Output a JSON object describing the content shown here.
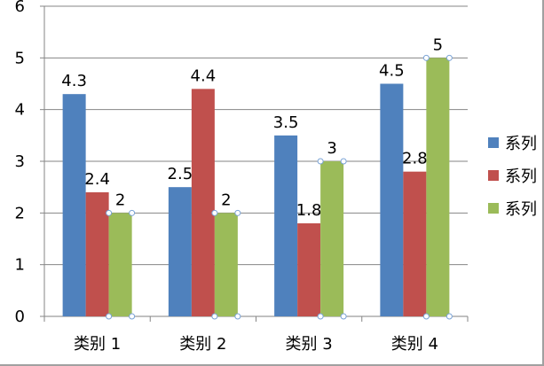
{
  "colors": {
    "series_1": "#4f81bd",
    "series_2": "#c0504d",
    "series_3": "#9bbb59",
    "handle": "#7aa3d6"
  },
  "chart_data": {
    "type": "bar",
    "categories": [
      "类别 1",
      "类别 2",
      "类别 3",
      "类别 4"
    ],
    "series": [
      {
        "name": "系列",
        "values": [
          4.3,
          2.5,
          3.5,
          4.5
        ],
        "labels": [
          "4.3",
          "2.5",
          "3.5",
          "4.5"
        ]
      },
      {
        "name": "系列",
        "values": [
          2.4,
          4.4,
          1.8,
          2.8
        ],
        "labels": [
          "2.4",
          "4.4",
          "1.8",
          "2.8"
        ]
      },
      {
        "name": "系列",
        "values": [
          2,
          2,
          3,
          5
        ],
        "labels": [
          "2",
          "2",
          "3",
          "5"
        ]
      }
    ],
    "ylim": [
      0,
      6
    ],
    "yticks": [
      "0",
      "1",
      "2",
      "3",
      "4",
      "5",
      "6"
    ],
    "grid": true,
    "legend": "right",
    "selected_series": 3
  }
}
